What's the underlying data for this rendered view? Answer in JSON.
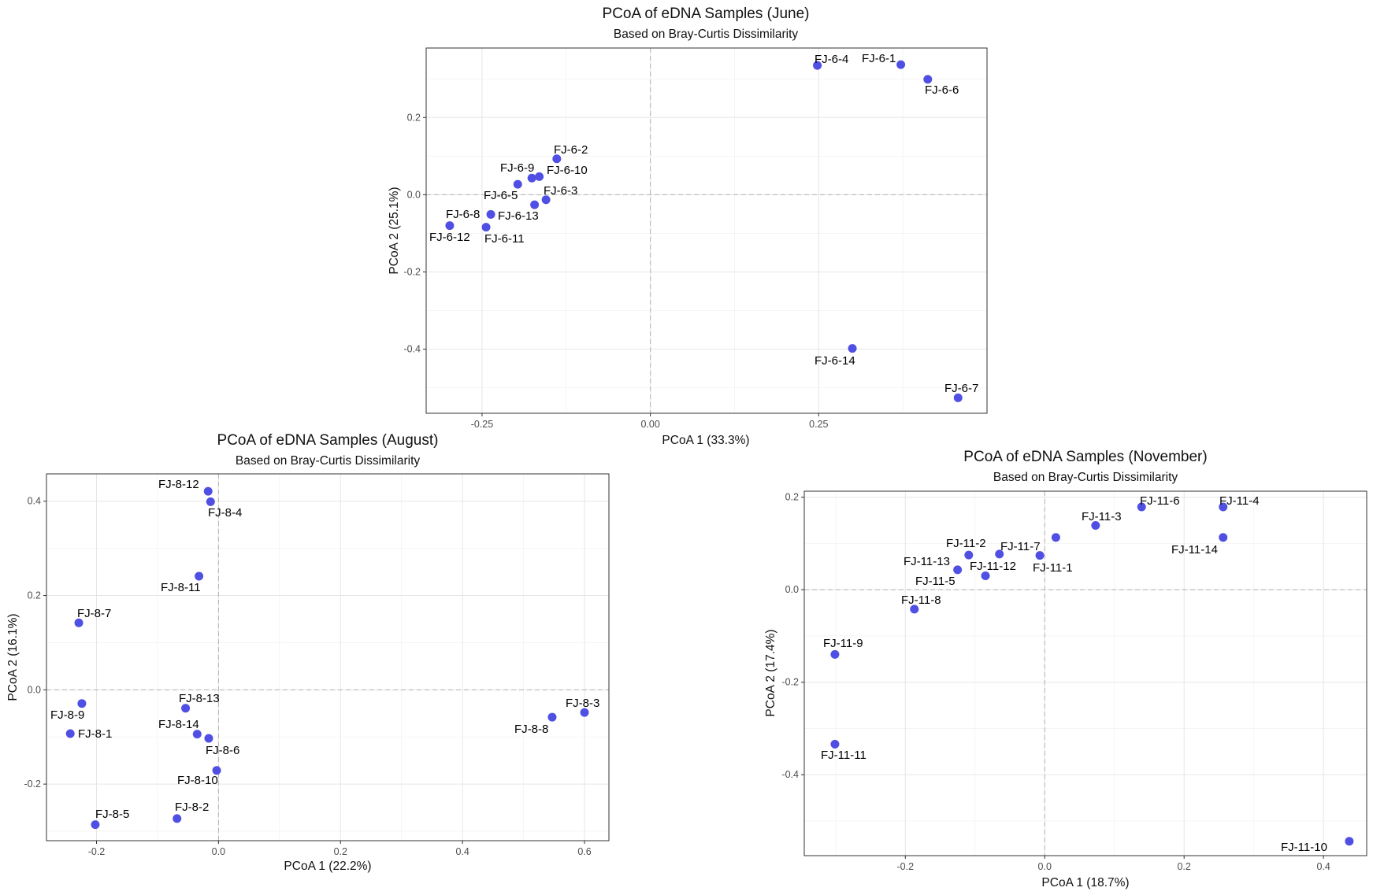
{
  "colors": {
    "point": "#4f4fe3",
    "background": "#ffffff"
  },
  "chart_data": [
    {
      "type": "scatter",
      "title": "PCoA of eDNA Samples (June)",
      "subtitle": "Based on Bray-Curtis Dissimilarity",
      "xlabel": "PCoA 1 (33.3%)",
      "ylabel": "PCoA 2 (25.1%)",
      "xlim": [
        -0.333,
        0.5
      ],
      "ylim": [
        -0.566,
        0.38
      ],
      "xticks": [
        -0.25,
        0.0,
        0.25
      ],
      "xtick_labels": [
        "-0.25",
        "0.00",
        "0.25"
      ],
      "yticks": [
        -0.4,
        -0.2,
        0.0,
        0.2
      ],
      "ytick_labels": [
        "-0.4",
        "-0.2",
        "0.0",
        "0.2"
      ],
      "grid": true,
      "points": [
        {
          "label": "FJ-6-4",
          "x": 0.248,
          "y": 0.335
        },
        {
          "label": "FJ-6-1",
          "x": 0.372,
          "y": 0.337
        },
        {
          "label": "FJ-6-6",
          "x": 0.412,
          "y": 0.299
        },
        {
          "label": "FJ-6-2",
          "x": -0.139,
          "y": 0.093
        },
        {
          "label": "FJ-6-9",
          "x": -0.176,
          "y": 0.043
        },
        {
          "label": "FJ-6-10",
          "x": -0.165,
          "y": 0.047
        },
        {
          "label": "FJ-6-5",
          "x": -0.197,
          "y": 0.027
        },
        {
          "label": "FJ-6-3",
          "x": -0.155,
          "y": -0.013
        },
        {
          "label": "FJ-6-13",
          "x": -0.172,
          "y": -0.026
        },
        {
          "label": "FJ-6-8",
          "x": -0.237,
          "y": -0.051
        },
        {
          "label": "FJ-6-12",
          "x": -0.298,
          "y": -0.08
        },
        {
          "label": "FJ-6-11",
          "x": -0.244,
          "y": -0.084
        },
        {
          "label": "FJ-6-14",
          "x": 0.3,
          "y": -0.398
        },
        {
          "label": "FJ-6-7",
          "x": 0.457,
          "y": -0.526
        }
      ]
    },
    {
      "type": "scatter",
      "title": "PCoA of eDNA Samples (August)",
      "subtitle": "Based on Bray-Curtis Dissimilarity",
      "xlabel": "PCoA 1 (22.2%)",
      "ylabel": "PCoA 2 (16.1%)",
      "xlim": [
        -0.282,
        0.64
      ],
      "ylim": [
        -0.32,
        0.458
      ],
      "xticks": [
        -0.2,
        0.0,
        0.2,
        0.4,
        0.6
      ],
      "xtick_labels": [
        "-0.2",
        "0.0",
        "0.2",
        "0.4",
        "0.6"
      ],
      "yticks": [
        -0.2,
        0.0,
        0.2,
        0.4
      ],
      "ytick_labels": [
        "-0.2",
        "0.0",
        "0.2",
        "0.4"
      ],
      "grid": true,
      "points": [
        {
          "label": "FJ-8-12",
          "x": -0.017,
          "y": 0.421
        },
        {
          "label": "FJ-8-4",
          "x": -0.013,
          "y": 0.399
        },
        {
          "label": "FJ-8-11",
          "x": -0.032,
          "y": 0.241
        },
        {
          "label": "FJ-8-7",
          "x": -0.229,
          "y": 0.142
        },
        {
          "label": "FJ-8-3",
          "x": 0.6,
          "y": -0.048
        },
        {
          "label": "FJ-8-8",
          "x": 0.547,
          "y": -0.058
        },
        {
          "label": "FJ-8-9",
          "x": -0.224,
          "y": -0.029
        },
        {
          "label": "FJ-8-13",
          "x": -0.054,
          "y": -0.039
        },
        {
          "label": "FJ-8-1",
          "x": -0.243,
          "y": -0.093
        },
        {
          "label": "FJ-8-14",
          "x": -0.035,
          "y": -0.094
        },
        {
          "label": "FJ-8-6",
          "x": -0.016,
          "y": -0.103
        },
        {
          "label": "FJ-8-10",
          "x": -0.003,
          "y": -0.171
        },
        {
          "label": "FJ-8-5",
          "x": -0.202,
          "y": -0.286
        },
        {
          "label": "FJ-8-2",
          "x": -0.068,
          "y": -0.273
        }
      ]
    },
    {
      "type": "scatter",
      "title": "PCoA of eDNA Samples (November)",
      "subtitle": "Based on Bray-Curtis Dissimilarity",
      "xlabel": "PCoA 1 (18.7%)",
      "ylabel": "PCoA 2 (17.4%)",
      "xlim": [
        -0.345,
        0.462
      ],
      "ylim": [
        -0.575,
        0.213
      ],
      "xticks": [
        -0.2,
        0.0,
        0.2,
        0.4
      ],
      "xtick_labels": [
        "-0.2",
        "0.0",
        "0.2",
        "0.4"
      ],
      "yticks": [
        -0.4,
        -0.2,
        0.0,
        0.2
      ],
      "ytick_labels": [
        "-0.4",
        "-0.2",
        "0.0",
        "0.2"
      ],
      "grid": true,
      "points": [
        {
          "label": "FJ-11-6",
          "x": 0.139,
          "y": 0.179
        },
        {
          "label": "FJ-11-4",
          "x": 0.256,
          "y": 0.179
        },
        {
          "label": "FJ-11-3",
          "x": 0.073,
          "y": 0.139
        },
        {
          "label": "FJ-11-14",
          "x": 0.256,
          "y": 0.113
        },
        {
          "label": "FJ-11-7",
          "x": 0.016,
          "y": 0.113
        },
        {
          "label": "FJ-11-2",
          "x": -0.109,
          "y": 0.075
        },
        {
          "label": "FJ-11-12",
          "x": -0.065,
          "y": 0.077
        },
        {
          "label": "FJ-11-1",
          "x": -0.007,
          "y": 0.074
        },
        {
          "label": "FJ-11-13",
          "x": -0.125,
          "y": 0.043
        },
        {
          "label": "FJ-11-5",
          "x": -0.085,
          "y": 0.03
        },
        {
          "label": "FJ-11-8",
          "x": -0.187,
          "y": -0.042
        },
        {
          "label": "FJ-11-9",
          "x": -0.301,
          "y": -0.14
        },
        {
          "label": "FJ-11-11",
          "x": -0.301,
          "y": -0.334
        },
        {
          "label": "FJ-11-10",
          "x": 0.437,
          "y": -0.544
        }
      ]
    }
  ]
}
